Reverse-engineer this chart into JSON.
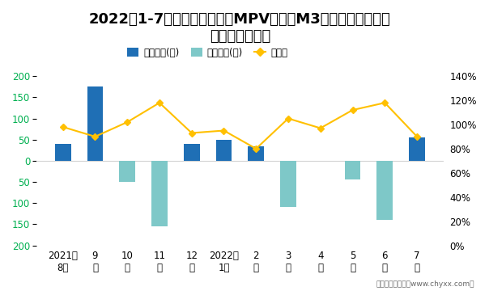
{
  "title_line1": "2022年1-7月江淮旗下最畅销MPV（瑞风M3）近一年库存情况",
  "title_line2": "及产销率统计图",
  "categories": [
    "2021年\n8月",
    "9\n月",
    "10\n月",
    "11\n月",
    "12\n月",
    "2022年\n1月",
    "2\n月",
    "3\n月",
    "4\n月",
    "5\n月",
    "6\n月",
    "7\n月"
  ],
  "bar_positive": [
    40,
    175,
    0,
    0,
    40,
    50,
    35,
    0,
    0,
    0,
    0,
    55
  ],
  "bar_negative": [
    0,
    0,
    -50,
    -155,
    0,
    0,
    0,
    -110,
    0,
    -45,
    -140,
    0
  ],
  "line_values": [
    98,
    90,
    102,
    118,
    93,
    95,
    80,
    105,
    97,
    112,
    118,
    90
  ],
  "bar_positive_color": "#1F6FB5",
  "bar_negative_color": "#7EC8C8",
  "line_color": "#FFC000",
  "line_marker": "D",
  "ylim": [
    -200,
    200
  ],
  "yticks_left": [
    200,
    150,
    100,
    50,
    0,
    50,
    100,
    150,
    200
  ],
  "yticks_left_vals": [
    200,
    150,
    100,
    50,
    0,
    -50,
    -100,
    -150,
    -200
  ],
  "ylim_right": [
    0,
    140
  ],
  "yticks_right": [
    0,
    20,
    40,
    60,
    80,
    100,
    120,
    140
  ],
  "ylabel_left_color": "#00B050",
  "legend_labels": [
    "积压库存(辆)",
    "清仓库存(辆)",
    "产销率"
  ],
  "footer": "制图：智研咨询（www.chyxx.com）",
  "background_color": "#FFFFFF",
  "title_fontsize": 13,
  "tick_fontsize": 8.5
}
